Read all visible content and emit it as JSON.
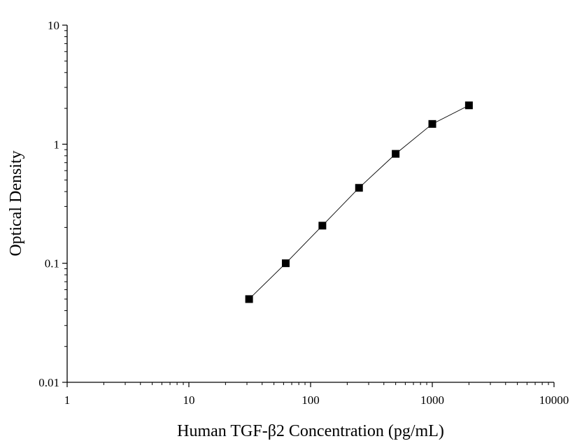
{
  "chart_data": {
    "type": "line",
    "title": "",
    "xlabel": "Human TGF-β2 Concentration (pg/mL)",
    "ylabel": "Optical Density",
    "x_scale": "log",
    "y_scale": "log",
    "xlim": [
      1,
      10000
    ],
    "ylim": [
      0.01,
      10
    ],
    "x_ticks": [
      "1",
      "10",
      "100",
      "1000",
      "10000"
    ],
    "y_ticks": [
      "0.01",
      "0.1",
      "1",
      "10"
    ],
    "grid": false,
    "legend": "none",
    "series": [
      {
        "x": [
          31.25,
          62.5,
          125,
          250,
          500,
          1000,
          2000
        ],
        "y": [
          0.05,
          0.1,
          0.207,
          0.43,
          0.83,
          1.48,
          2.12
        ],
        "marker": "square",
        "color": "#000000"
      }
    ]
  }
}
